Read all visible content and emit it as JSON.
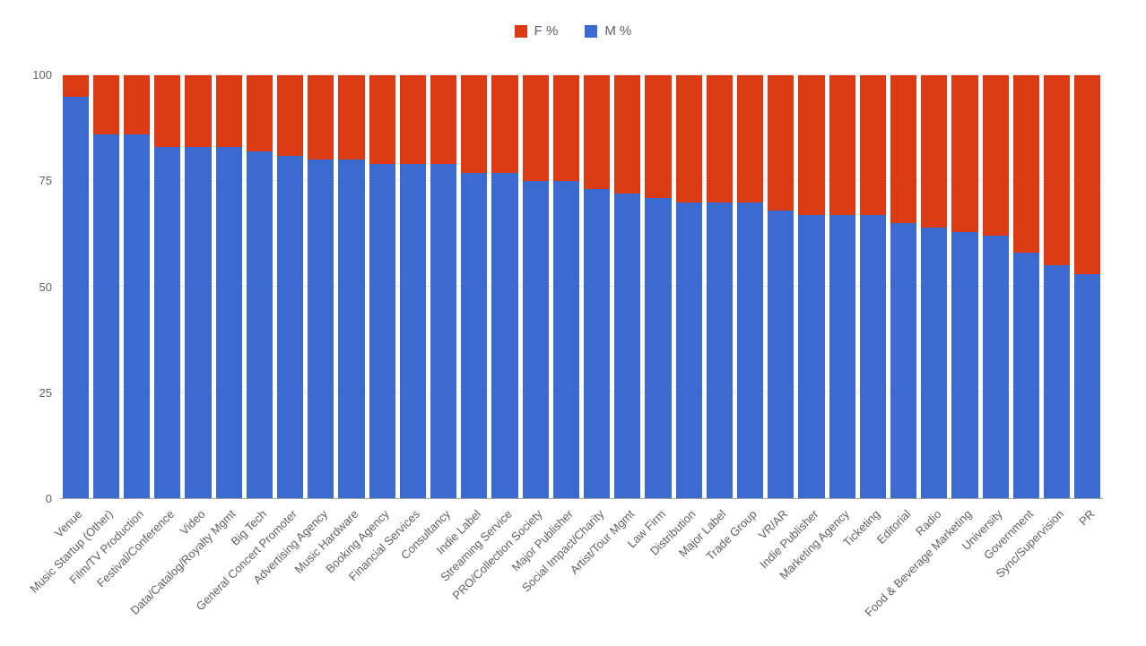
{
  "colors": {
    "f_series": "#dc3a12",
    "m_series": "#3b6bd0",
    "grid": "#e6e6e6",
    "axis_line": "#9e9e9e",
    "tick_text": "#616161"
  },
  "chart_data": {
    "type": "bar",
    "stacked": true,
    "title": "",
    "xlabel": "",
    "ylabel": "",
    "ylim": [
      0,
      100
    ],
    "yticks": [
      0,
      25,
      50,
      75,
      100
    ],
    "grid": true,
    "legend_position": "top",
    "categories": [
      "Venue",
      "Music Startup (Other)",
      "Film/TV Production",
      "Festival/Conference",
      "Video",
      "Data/Catalog/Royalty Mgmt",
      "Big Tech",
      "General Concert Promoter",
      "Advertising Agency",
      "Music Hardware",
      "Booking Agency",
      "Financial Services",
      "Consultancy",
      "Indie Label",
      "Streaming Service",
      "PRO/Collection Society",
      "Major Publisher",
      "Social Impact/Charity",
      "Artist/Tour Mgmt",
      "Law Firm",
      "Distribution",
      "Major Label",
      "Trade Group",
      "VR/AR",
      "Indie Publisher",
      "Marketing Agency",
      "Ticketing",
      "Editorial",
      "Radio",
      "Food & Beverage Marketing",
      "University",
      "Government",
      "Sync/Supervision",
      "PR"
    ],
    "series": [
      {
        "name": "F %",
        "color": "#dc3a12",
        "values": [
          5,
          14,
          14,
          17,
          17,
          17,
          18,
          19,
          20,
          20,
          21,
          21,
          21,
          23,
          23,
          25,
          25,
          27,
          28,
          29,
          30,
          30,
          30,
          32,
          33,
          33,
          33,
          35,
          36,
          37,
          38,
          42,
          45,
          47
        ]
      },
      {
        "name": "M %",
        "color": "#3b6bd0",
        "values": [
          95,
          86,
          86,
          83,
          83,
          83,
          82,
          81,
          80,
          80,
          79,
          79,
          79,
          77,
          77,
          75,
          75,
          73,
          72,
          71,
          70,
          70,
          70,
          68,
          67,
          67,
          67,
          65,
          64,
          63,
          62,
          58,
          55,
          53
        ]
      }
    ]
  }
}
